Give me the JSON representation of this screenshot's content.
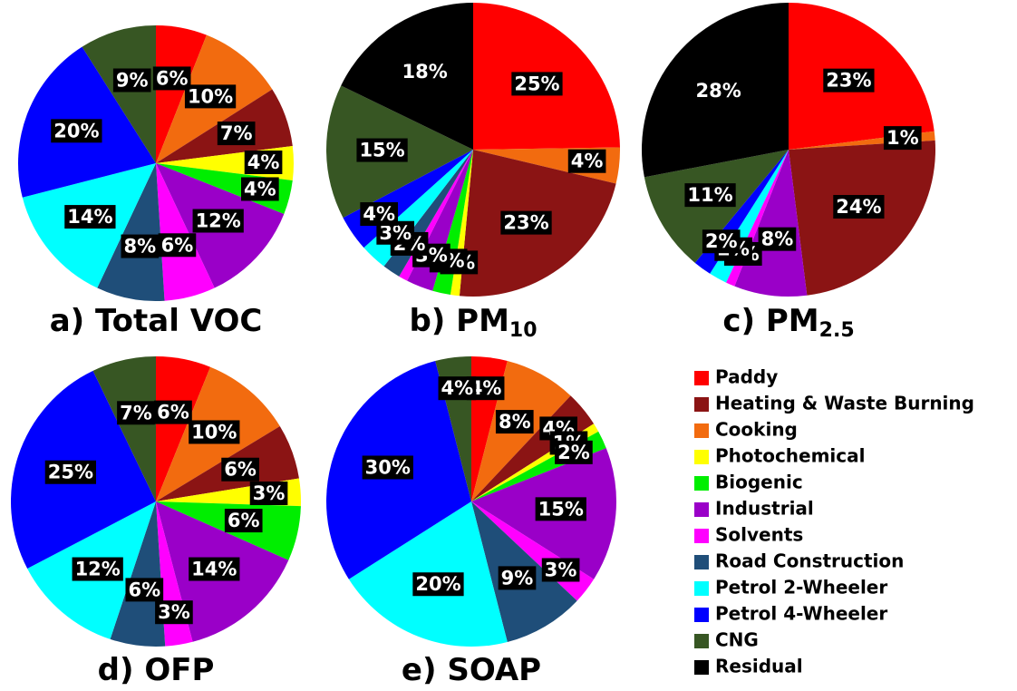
{
  "chart_data": [
    {
      "type": "pie",
      "title": "a) Total VOC",
      "categories": [
        "Paddy",
        "Cooking",
        "Heating & Waste Burning",
        "Photochemical",
        "Biogenic",
        "Industrial",
        "Solvents",
        "Road Construction",
        "Petrol 2-Wheeler",
        "Petrol 4-Wheeler",
        "CNG"
      ],
      "values": [
        6,
        10,
        7,
        4,
        4,
        12,
        6,
        8,
        14,
        20,
        9
      ],
      "value_labels": [
        "6%",
        "10%",
        "7%",
        "4%",
        "4%",
        "12%",
        "6%",
        "8%",
        "14%",
        "20%",
        "9%"
      ]
    },
    {
      "type": "pie",
      "title": "b) PM",
      "title_sub": "10",
      "categories": [
        "Paddy",
        "Cooking",
        "Heating & Waste Burning",
        "Photochemical",
        "Biogenic",
        "Industrial",
        "Solvents",
        "Road Construction",
        "Petrol 2-Wheeler",
        "Petrol 4-Wheeler",
        "CNG",
        "Residual"
      ],
      "values": [
        25,
        4,
        23,
        1,
        2,
        3,
        1,
        2,
        3,
        4,
        15,
        18
      ],
      "value_labels": [
        "25%",
        "4%",
        "23%",
        "1%",
        "2%",
        "3%",
        null,
        "2%",
        "3%",
        "4%",
        "15%",
        "18%"
      ]
    },
    {
      "type": "pie",
      "title": "c) PM",
      "title_sub": "2.5",
      "categories": [
        "Paddy",
        "Cooking",
        "Heating & Waste Burning",
        "Industrial",
        "Solvents",
        "Petrol 2-Wheeler",
        "Petrol 4-Wheeler",
        "CNG",
        "Residual"
      ],
      "values": [
        23,
        1,
        24,
        8,
        1,
        2,
        2,
        11,
        28
      ],
      "value_labels": [
        "23%",
        "1%",
        "24%",
        "8%",
        "1%",
        "2%",
        "2%",
        "11%",
        "28%"
      ]
    },
    {
      "type": "pie",
      "title": "d) OFP",
      "categories": [
        "Paddy",
        "Cooking",
        "Heating & Waste Burning",
        "Photochemical",
        "Biogenic",
        "Industrial",
        "Solvents",
        "Road Construction",
        "Petrol 2-Wheeler",
        "Petrol 4-Wheeler",
        "CNG"
      ],
      "values": [
        6,
        10,
        6,
        3,
        6,
        14,
        3,
        6,
        12,
        25,
        7
      ],
      "value_labels": [
        "6%",
        "10%",
        "6%",
        "3%",
        "6%",
        "14%",
        "3%",
        "6%",
        "12%",
        "25%",
        "7%"
      ]
    },
    {
      "type": "pie",
      "title": "e) SOAP",
      "categories": [
        "Paddy",
        "Cooking",
        "Heating & Waste Burning",
        "Photochemical",
        "Biogenic",
        "Industrial",
        "Solvents",
        "Road Construction",
        "Petrol 2-Wheeler",
        "Petrol 4-Wheeler",
        "CNG"
      ],
      "values": [
        4,
        8,
        4,
        1,
        2,
        15,
        3,
        9,
        20,
        30,
        4
      ],
      "value_labels": [
        "4%",
        "8%",
        "4%",
        "1%",
        "2%",
        "15%",
        "3%",
        "9%",
        "20%",
        "30%",
        "4%"
      ]
    }
  ],
  "legend": {
    "items": [
      {
        "name": "Paddy",
        "color": "#ff0000"
      },
      {
        "name": "Heating & Waste Burning",
        "color": "#8b1414"
      },
      {
        "name": "Cooking",
        "color": "#f26b0f"
      },
      {
        "name": "Photochemical",
        "color": "#ffff00"
      },
      {
        "name": "Biogenic",
        "color": "#00ee00"
      },
      {
        "name": "Industrial",
        "color": "#9a00c8"
      },
      {
        "name": "Solvents",
        "color": "#ff00ff"
      },
      {
        "name": "Road Construction",
        "color": "#1f4e79"
      },
      {
        "name": "Petrol 2-Wheeler",
        "color": "#00ffff"
      },
      {
        "name": "Petrol 4-Wheeler",
        "color": "#0000ff"
      },
      {
        "name": "CNG",
        "color": "#375623"
      },
      {
        "name": "Residual",
        "color": "#000000"
      }
    ]
  }
}
